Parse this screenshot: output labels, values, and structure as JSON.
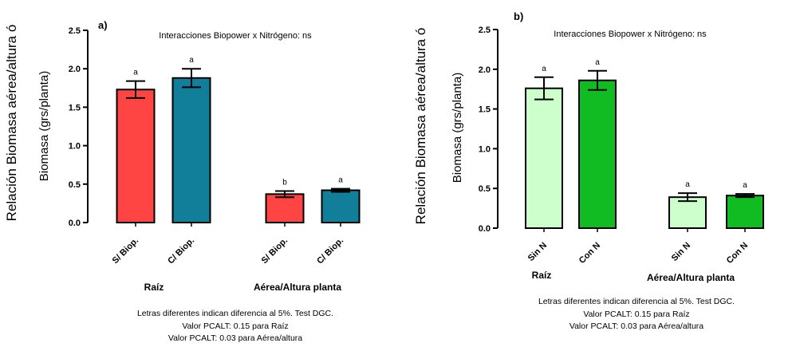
{
  "chart_data": [
    {
      "type": "bar",
      "panel_label": "a)",
      "interaction_text": "Interacciones Biopower  x Nitrógeno: ns",
      "ylabel_outer": "Relación Biomasa aérea/altura ó",
      "ylabel_inner": "Biomasa (grs/planta)",
      "ylim": [
        0,
        2.5
      ],
      "yticks": [
        "0.0",
        "0.5",
        "1.0",
        "1.5",
        "2.0",
        "2.5"
      ],
      "groups": [
        "Raíz",
        "Aérea/Altura planta"
      ],
      "bars": [
        {
          "category": "S/ Biop.",
          "group": 0,
          "value": 1.73,
          "error": 0.11,
          "letter": "a",
          "color": "#ff4444"
        },
        {
          "category": "C/ Biop.",
          "group": 0,
          "value": 1.88,
          "error": 0.12,
          "letter": "a",
          "color": "#117f99"
        },
        {
          "category": "S/ Biop.",
          "group": 1,
          "value": 0.37,
          "error": 0.04,
          "letter": "b",
          "color": "#ff4444"
        },
        {
          "category": "C/ Biop.",
          "group": 1,
          "value": 0.42,
          "error": 0.02,
          "letter": "a",
          "color": "#117f99"
        }
      ],
      "notes": [
        "Letras diferentes  indican diferencia al 5%. Test DGC.",
        "Valor PCALT: 0.15 para Raíz",
        "Valor PCALT: 0.03 para Aérea/altura"
      ]
    },
    {
      "type": "bar",
      "panel_label": "b)",
      "interaction_text": "Interacciones Biopower  x Nitrógeno: ns",
      "ylabel_outer": "Relación Biomasa aérea/altura ó",
      "ylabel_inner": "Biomasa (grs/planta)",
      "ylim": [
        0,
        2.5
      ],
      "yticks": [
        "0.0",
        "0.5",
        "1.0",
        "1.5",
        "2.0",
        "2.5"
      ],
      "groups": [
        "Raíz",
        "Aérea/Altura planta"
      ],
      "bars": [
        {
          "category": "Sin N",
          "group": 0,
          "value": 1.76,
          "error": 0.14,
          "letter": "a",
          "color": "#ccffcc"
        },
        {
          "category": "Con N",
          "group": 0,
          "value": 1.86,
          "error": 0.12,
          "letter": "a",
          "color": "#11bb22"
        },
        {
          "category": "Sin N",
          "group": 1,
          "value": 0.39,
          "error": 0.05,
          "letter": "a",
          "color": "#ccffcc"
        },
        {
          "category": "Con N",
          "group": 1,
          "value": 0.41,
          "error": 0.02,
          "letter": "a",
          "color": "#11bb22"
        }
      ],
      "notes": [
        "Letras diferentes  indican diferencia al 5%. Test DGC.",
        "Valor PCALT: 0.15 para Raíz",
        "Valor PCALT: 0.03 para Aérea/altura"
      ]
    }
  ]
}
